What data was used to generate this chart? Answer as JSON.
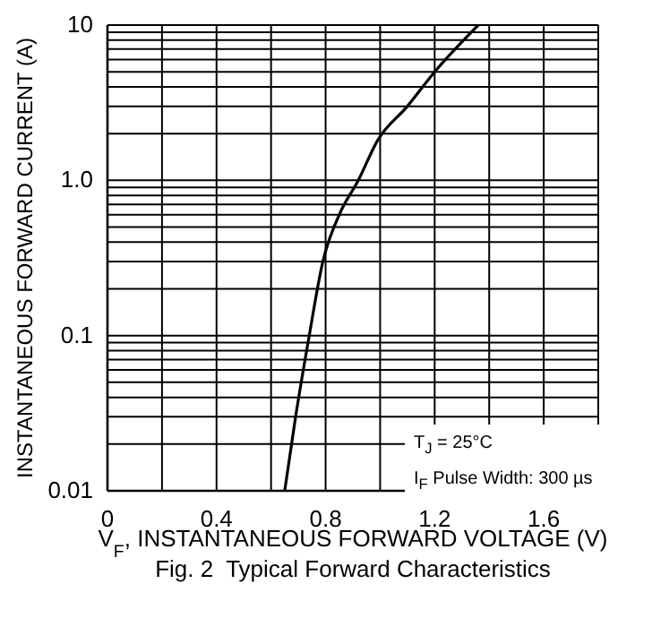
{
  "chart_data": {
    "type": "line",
    "title": "Fig. 2  Typical Forward Characteristics",
    "xlabel": "V$_{F}$, INSTANTANEOUS FORWARD VOLTAGE (V)",
    "ylabel": "INSTANTANEOUS FORWARD CURRENT (A)",
    "annotations": [
      "T$_{J}$ = 25°C",
      "I$_{F}$ Pulse Width: 300 µs"
    ],
    "series": [
      {
        "color": "#000000",
        "x": [
          0.65,
          0.69,
          0.74,
          0.79,
          0.85,
          0.92,
          0.99,
          1.1,
          1.2,
          1.36
        ],
        "values": [
          0.01,
          0.03,
          0.1,
          0.3,
          0.6,
          1,
          1.8,
          3,
          5,
          10
        ]
      }
    ],
    "xlim": [
      0,
      1.8
    ],
    "xticks": [
      0,
      {
        "value": 0.2,
        "label": null
      },
      0.4,
      {
        "value": 0.6,
        "label": null
      },
      0.8,
      {
        "value": 1.0,
        "label": null
      },
      1.2,
      {
        "value": 1.4,
        "label": null
      },
      1.6,
      {
        "value": 1.8,
        "label": null
      }
    ],
    "ylim": [
      0.01,
      10
    ],
    "yticks": [
      0.01,
      {
        "value": 0.02,
        "label": null
      },
      {
        "value": 0.03,
        "label": null
      },
      {
        "value": 0.04,
        "label": null
      },
      {
        "value": 0.05,
        "label": null
      },
      {
        "value": 0.06,
        "label": null
      },
      {
        "value": 0.07,
        "label": null
      },
      {
        "value": 0.08,
        "label": null
      },
      {
        "value": 0.09,
        "label": null
      },
      0.1,
      {
        "value": 0.2,
        "label": null
      },
      {
        "value": 0.3,
        "label": null
      },
      {
        "value": 0.4,
        "label": null
      },
      {
        "value": 0.5,
        "label": null
      },
      {
        "value": 0.6,
        "label": null
      },
      {
        "value": 0.7,
        "label": null
      },
      {
        "value": 0.8,
        "label": null
      },
      {
        "value": 0.9,
        "label": null
      },
      {
        "value": 1,
        "label": "1.0"
      },
      {
        "value": 2,
        "label": null
      },
      {
        "value": 3,
        "label": null
      },
      {
        "value": 4,
        "label": null
      },
      {
        "value": 5,
        "label": null
      },
      {
        "value": 6,
        "label": null
      },
      {
        "value": 7,
        "label": null
      },
      {
        "value": 8,
        "label": null
      },
      {
        "value": 9,
        "label": null
      },
      10
    ],
    "log": "y",
    "grid": true,
    "marker": "none",
    "line_style": "solid"
  }
}
